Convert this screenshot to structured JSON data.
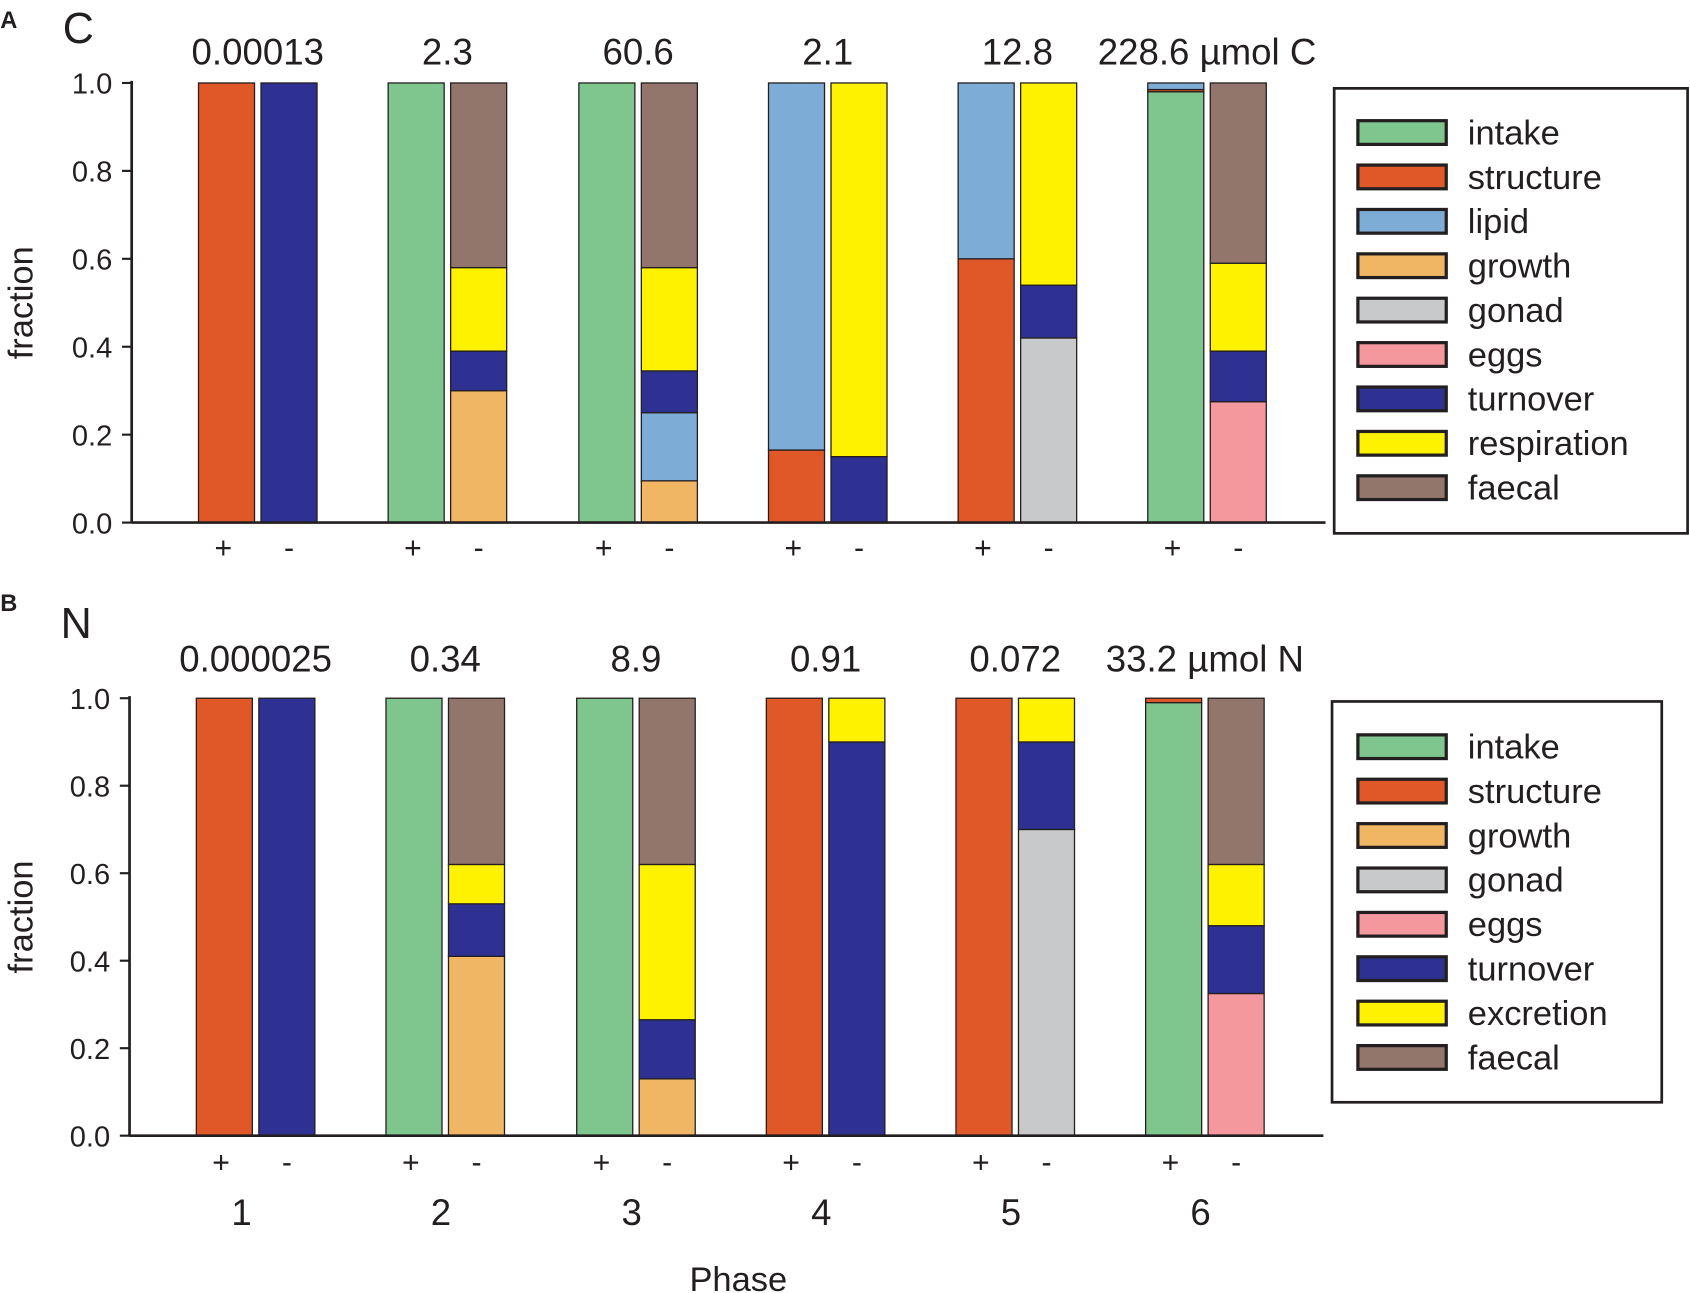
{
  "xlabel": "Phase",
  "phases": [
    "1",
    "2",
    "3",
    "4",
    "5",
    "6"
  ],
  "colors": {
    "intake": "#7FC68E",
    "structure": "#E05728",
    "lipid": "#7DADD6",
    "growth": "#F0B664",
    "gonad": "#C8C9CB",
    "eggs": "#F4989E",
    "turnover": "#2E3192",
    "respiration": "#FFF200",
    "excretion": "#FFF200",
    "faecal": "#93766B"
  },
  "chart_data": [
    {
      "type": "bar",
      "stacked": true,
      "panel": "A",
      "title": "C",
      "ylabel": "fraction",
      "xlabel": "Phase",
      "ylim": [
        0,
        1
      ],
      "yticks": [
        "0.0",
        "0.2",
        "0.4",
        "0.6",
        "0.8",
        "1.0"
      ],
      "totals": [
        "0.00013",
        "2.3",
        "60.6",
        "2.1",
        "12.8",
        "228.6 µmol C"
      ],
      "bar_labels": [
        "+",
        "-"
      ],
      "legend": [
        "intake",
        "structure",
        "lipid",
        "growth",
        "gonad",
        "eggs",
        "turnover",
        "respiration",
        "faecal"
      ],
      "legend_position": "right",
      "bars": [
        {
          "phase": "1",
          "sign": "+",
          "stack": [
            {
              "name": "structure",
              "value": 1.0
            }
          ]
        },
        {
          "phase": "1",
          "sign": "-",
          "stack": [
            {
              "name": "turnover",
              "value": 1.0
            }
          ]
        },
        {
          "phase": "2",
          "sign": "+",
          "stack": [
            {
              "name": "intake",
              "value": 1.0
            }
          ]
        },
        {
          "phase": "2",
          "sign": "-",
          "stack": [
            {
              "name": "growth",
              "value": 0.3
            },
            {
              "name": "turnover",
              "value": 0.09
            },
            {
              "name": "respiration",
              "value": 0.19
            },
            {
              "name": "faecal",
              "value": 0.42
            }
          ]
        },
        {
          "phase": "3",
          "sign": "+",
          "stack": [
            {
              "name": "intake",
              "value": 1.0
            }
          ]
        },
        {
          "phase": "3",
          "sign": "-",
          "stack": [
            {
              "name": "growth",
              "value": 0.095
            },
            {
              "name": "lipid",
              "value": 0.155
            },
            {
              "name": "turnover",
              "value": 0.095
            },
            {
              "name": "respiration",
              "value": 0.235
            },
            {
              "name": "faecal",
              "value": 0.42
            }
          ]
        },
        {
          "phase": "4",
          "sign": "+",
          "stack": [
            {
              "name": "structure",
              "value": 0.165
            },
            {
              "name": "lipid",
              "value": 0.835
            }
          ]
        },
        {
          "phase": "4",
          "sign": "-",
          "stack": [
            {
              "name": "turnover",
              "value": 0.15
            },
            {
              "name": "respiration",
              "value": 0.85
            }
          ]
        },
        {
          "phase": "5",
          "sign": "+",
          "stack": [
            {
              "name": "structure",
              "value": 0.6
            },
            {
              "name": "lipid",
              "value": 0.4
            }
          ]
        },
        {
          "phase": "5",
          "sign": "-",
          "stack": [
            {
              "name": "gonad",
              "value": 0.42
            },
            {
              "name": "turnover",
              "value": 0.12
            },
            {
              "name": "respiration",
              "value": 0.46
            }
          ]
        },
        {
          "phase": "6",
          "sign": "+",
          "stack": [
            {
              "name": "intake",
              "value": 0.98
            },
            {
              "name": "structure",
              "value": 0.005
            },
            {
              "name": "lipid",
              "value": 0.015
            }
          ]
        },
        {
          "phase": "6",
          "sign": "-",
          "stack": [
            {
              "name": "eggs",
              "value": 0.275
            },
            {
              "name": "turnover",
              "value": 0.115
            },
            {
              "name": "respiration",
              "value": 0.2
            },
            {
              "name": "faecal",
              "value": 0.41
            }
          ]
        }
      ]
    },
    {
      "type": "bar",
      "stacked": true,
      "panel": "B",
      "title": "N",
      "ylabel": "fraction",
      "xlabel": "Phase",
      "ylim": [
        0,
        1
      ],
      "yticks": [
        "0.0",
        "0.2",
        "0.4",
        "0.6",
        "0.8",
        "1.0"
      ],
      "totals": [
        "0.000025",
        "0.34",
        "8.9",
        "0.91",
        "0.072",
        "33.2 µmol N"
      ],
      "bar_labels": [
        "+",
        "-"
      ],
      "legend": [
        "intake",
        "structure",
        "growth",
        "gonad",
        "eggs",
        "turnover",
        "excretion",
        "faecal"
      ],
      "legend_position": "right",
      "bars": [
        {
          "phase": "1",
          "sign": "+",
          "stack": [
            {
              "name": "structure",
              "value": 1.0
            }
          ]
        },
        {
          "phase": "1",
          "sign": "-",
          "stack": [
            {
              "name": "turnover",
              "value": 1.0
            }
          ]
        },
        {
          "phase": "2",
          "sign": "+",
          "stack": [
            {
              "name": "intake",
              "value": 1.0
            }
          ]
        },
        {
          "phase": "2",
          "sign": "-",
          "stack": [
            {
              "name": "growth",
              "value": 0.41
            },
            {
              "name": "turnover",
              "value": 0.12
            },
            {
              "name": "excretion",
              "value": 0.09
            },
            {
              "name": "faecal",
              "value": 0.38
            }
          ]
        },
        {
          "phase": "3",
          "sign": "+",
          "stack": [
            {
              "name": "intake",
              "value": 1.0
            }
          ]
        },
        {
          "phase": "3",
          "sign": "-",
          "stack": [
            {
              "name": "growth",
              "value": 0.13
            },
            {
              "name": "turnover",
              "value": 0.135
            },
            {
              "name": "excretion",
              "value": 0.355
            },
            {
              "name": "faecal",
              "value": 0.38
            }
          ]
        },
        {
          "phase": "4",
          "sign": "+",
          "stack": [
            {
              "name": "structure",
              "value": 1.0
            }
          ]
        },
        {
          "phase": "4",
          "sign": "-",
          "stack": [
            {
              "name": "turnover",
              "value": 0.9
            },
            {
              "name": "excretion",
              "value": 0.1
            }
          ]
        },
        {
          "phase": "5",
          "sign": "+",
          "stack": [
            {
              "name": "structure",
              "value": 1.0
            }
          ]
        },
        {
          "phase": "5",
          "sign": "-",
          "stack": [
            {
              "name": "gonad",
              "value": 0.7
            },
            {
              "name": "turnover",
              "value": 0.2
            },
            {
              "name": "excretion",
              "value": 0.1
            }
          ]
        },
        {
          "phase": "6",
          "sign": "+",
          "stack": [
            {
              "name": "intake",
              "value": 0.99
            },
            {
              "name": "structure",
              "value": 0.01
            }
          ]
        },
        {
          "phase": "6",
          "sign": "-",
          "stack": [
            {
              "name": "eggs",
              "value": 0.325
            },
            {
              "name": "turnover",
              "value": 0.155
            },
            {
              "name": "excretion",
              "value": 0.14
            },
            {
              "name": "faecal",
              "value": 0.38
            }
          ]
        }
      ]
    }
  ]
}
